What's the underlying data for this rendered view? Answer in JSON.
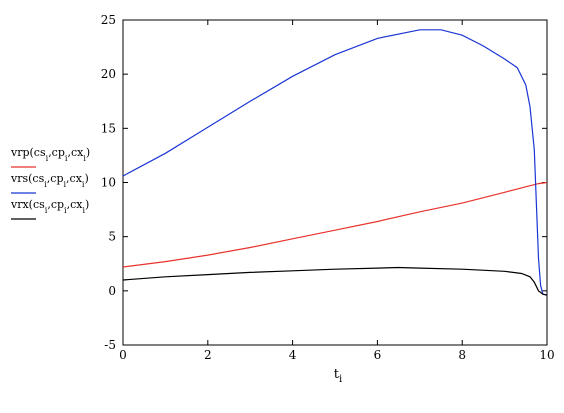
{
  "chart_data": {
    "type": "line",
    "xlabel": "t",
    "xlabel_sub": "i",
    "ylabel": "",
    "xlim": [
      0,
      10
    ],
    "ylim": [
      -5,
      25
    ],
    "x_ticks": [
      0,
      2,
      4,
      6,
      8,
      10
    ],
    "y_ticks": [
      -5,
      0,
      5,
      10,
      15,
      20,
      25
    ],
    "legend_position": "left",
    "series": [
      {
        "name": "vrp(cs_i,cp_i,cx_i)",
        "color": "#e8322c",
        "points": [
          [
            0,
            2.2
          ],
          [
            1,
            2.7
          ],
          [
            2,
            3.3
          ],
          [
            3,
            4.0
          ],
          [
            4,
            4.8
          ],
          [
            5,
            5.6
          ],
          [
            6,
            6.4
          ],
          [
            7,
            7.3
          ],
          [
            8,
            8.1
          ],
          [
            9,
            9.1
          ],
          [
            9.5,
            9.6
          ],
          [
            9.8,
            9.9
          ],
          [
            10,
            10.0
          ]
        ]
      },
      {
        "name": "vrs(cs_i,cp_i,cx_i)",
        "color": "#1b36d4",
        "points": [
          [
            0,
            10.6
          ],
          [
            1,
            12.7
          ],
          [
            2,
            15.1
          ],
          [
            3,
            17.5
          ],
          [
            4,
            19.8
          ],
          [
            5,
            21.8
          ],
          [
            6,
            23.3
          ],
          [
            7,
            24.1
          ],
          [
            7.5,
            24.1
          ],
          [
            8,
            23.6
          ],
          [
            8.5,
            22.6
          ],
          [
            9,
            21.4
          ],
          [
            9.3,
            20.6
          ],
          [
            9.5,
            19.0
          ],
          [
            9.6,
            17.0
          ],
          [
            9.7,
            13.0
          ],
          [
            9.75,
            8.0
          ],
          [
            9.8,
            3.0
          ],
          [
            9.85,
            0.5
          ],
          [
            9.9,
            -0.3
          ],
          [
            10,
            -0.4
          ]
        ]
      },
      {
        "name": "vrx(cs_i,cp_i,cx_i)",
        "color": "#000000",
        "points": [
          [
            0,
            1.0
          ],
          [
            1,
            1.3
          ],
          [
            2,
            1.5
          ],
          [
            3,
            1.7
          ],
          [
            4,
            1.85
          ],
          [
            5,
            2.0
          ],
          [
            6,
            2.1
          ],
          [
            6.5,
            2.15
          ],
          [
            7,
            2.1
          ],
          [
            8,
            2.0
          ],
          [
            9,
            1.8
          ],
          [
            9.4,
            1.6
          ],
          [
            9.6,
            1.3
          ],
          [
            9.7,
            0.8
          ],
          [
            9.8,
            0.0
          ],
          [
            9.9,
            -0.3
          ],
          [
            10,
            -0.4
          ]
        ]
      }
    ]
  }
}
